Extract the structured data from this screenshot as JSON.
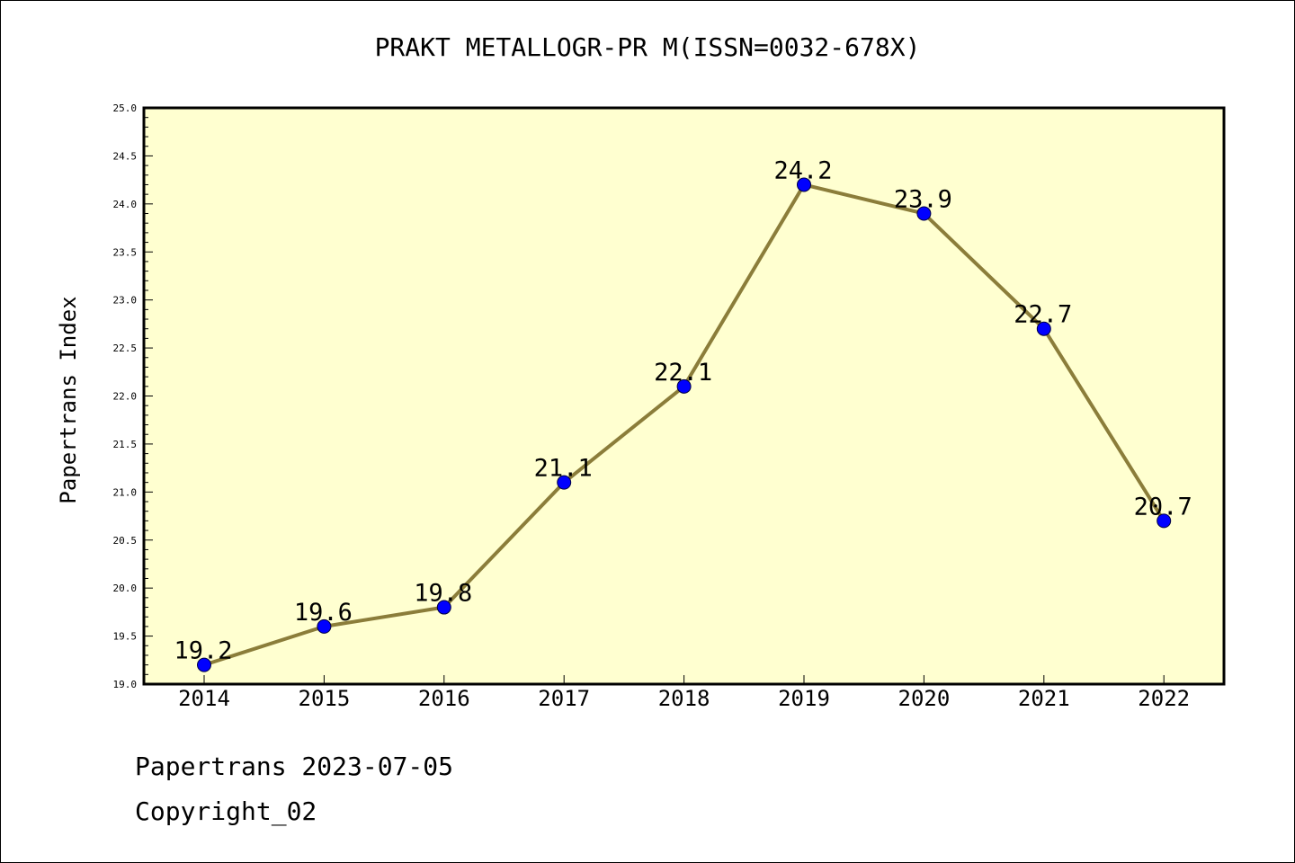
{
  "chart_data": {
    "type": "line",
    "title": "PRAKT METALLOGR-PR M(ISSN=0032-678X)",
    "ylabel": "Papertrans Index",
    "xlabel": "",
    "x": [
      "2014",
      "2015",
      "2016",
      "2017",
      "2018",
      "2019",
      "2020",
      "2021",
      "2022"
    ],
    "values": [
      19.2,
      19.6,
      19.8,
      21.1,
      22.1,
      24.2,
      23.9,
      22.7,
      20.7
    ],
    "data_labels": [
      "19.2",
      "19.6",
      "19.8",
      "21.1",
      "22.1",
      "24.2",
      "23.9",
      "22.7",
      "20.7"
    ],
    "ylim": [
      19.0,
      25.0
    ],
    "yticks": [
      "19.0",
      "19.5",
      "20.0",
      "20.5",
      "21.0",
      "21.5",
      "22.0",
      "22.5",
      "23.0",
      "23.5",
      "24.0",
      "24.5",
      "25.0"
    ],
    "grid": false,
    "line_color": "#8b7d3a",
    "marker_color": "#0000ff",
    "plot_background": "#ffffd0"
  },
  "footer": {
    "line1": "Papertrans 2023-07-05",
    "line2": "Copyright_02"
  }
}
